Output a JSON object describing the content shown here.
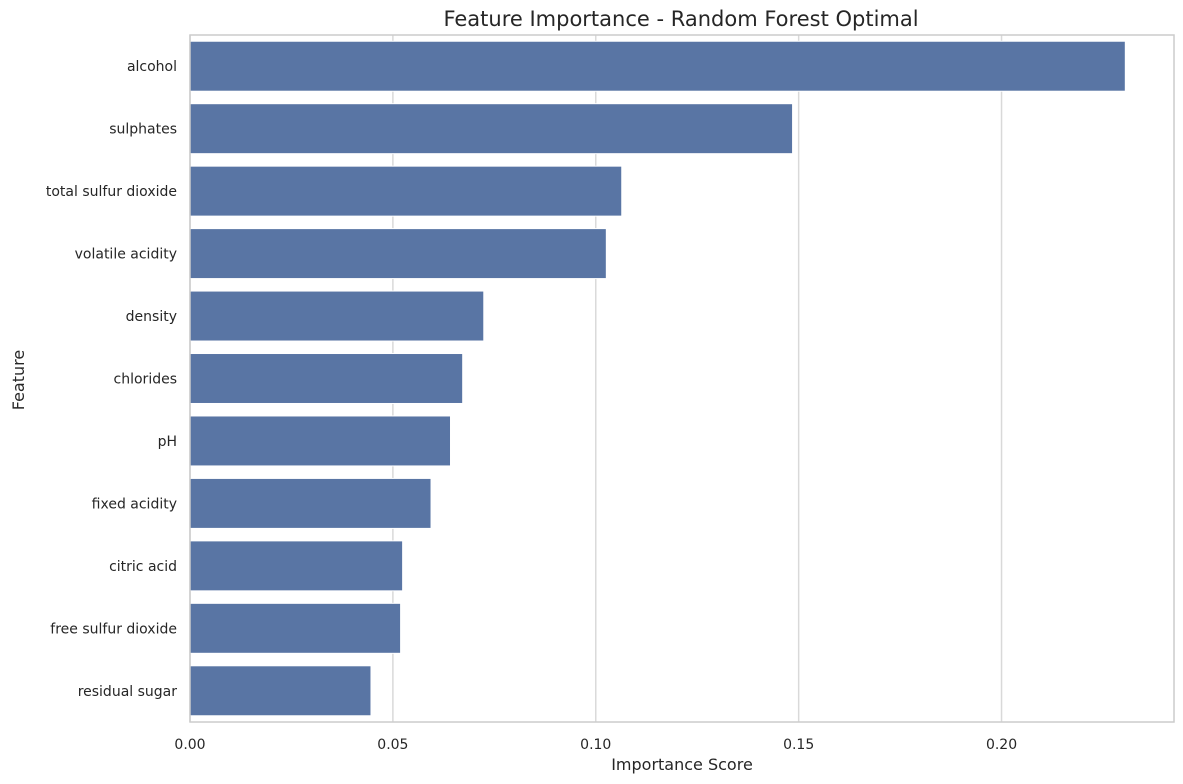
{
  "chart_data": {
    "type": "bar",
    "orientation": "horizontal",
    "title": "Feature Importance - Random Forest Optimal",
    "xlabel": "Importance Score",
    "ylabel": "Feature",
    "xlim": [
      0,
      0.2425
    ],
    "xticks": [
      0.0,
      0.05,
      0.1,
      0.15,
      0.2
    ],
    "xtick_labels": [
      "0.00",
      "0.05",
      "0.10",
      "0.15",
      "0.20"
    ],
    "grid": "vertical",
    "legend": "none",
    "colors": {
      "bar": "#5975a4",
      "grid": "#d9d9d9",
      "spine": "#cccccc",
      "text": "#262626"
    },
    "categories": [
      "alcohol",
      "sulphates",
      "total sulfur dioxide",
      "volatile acidity",
      "density",
      "chlorides",
      "pH",
      "fixed acidity",
      "citric acid",
      "free sulfur dioxide",
      "residual sugar"
    ],
    "values": [
      0.2305,
      0.1485,
      0.1064,
      0.1026,
      0.0724,
      0.0672,
      0.0642,
      0.0594,
      0.0524,
      0.0519,
      0.0446
    ]
  }
}
